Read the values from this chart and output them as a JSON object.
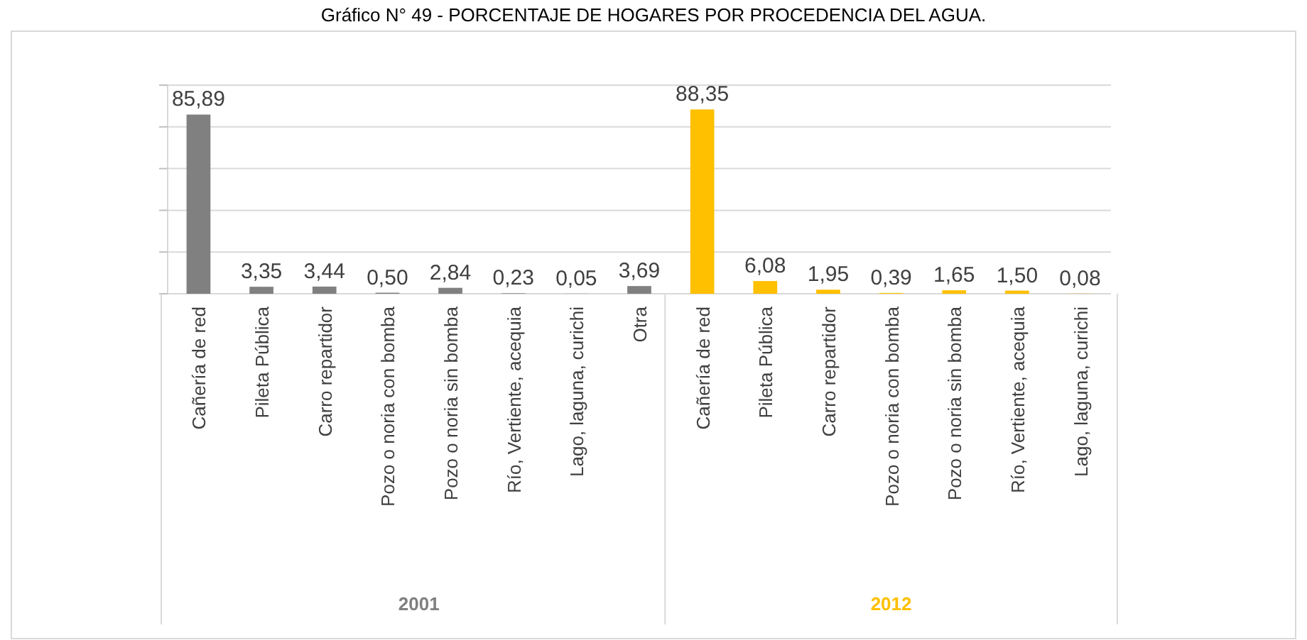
{
  "chart_data": {
    "type": "bar",
    "title": "Gráfico N° 49 - PORCENTAJE DE HOGARES POR PROCEDENCIA DEL AGUA.",
    "categories": [
      "Cañería de red",
      "Pileta Pública",
      "Carro repartidor",
      "Pozo o noria con bomba",
      "Pozo o noria sin bomba",
      "Río, Vertiente, acequia",
      "Lago, laguna, curichi",
      "Otra",
      "Cañería de red",
      "Pileta Pública",
      "Carro repartidor",
      "Pozo o noria con bomba",
      "Pozo o noria sin bomba",
      "Río, Vertiente, acequia",
      "Lago, laguna, curichi"
    ],
    "series": [
      {
        "name": "2001",
        "color": "#808080",
        "values": [
          85.89,
          3.35,
          3.44,
          0.5,
          2.84,
          0.23,
          0.05,
          3.69,
          null,
          null,
          null,
          null,
          null,
          null,
          null
        ],
        "value_labels": [
          "85,89",
          "3,35",
          "3,44",
          "0,50",
          "2,84",
          "0,23",
          "0,05",
          "3,69",
          null,
          null,
          null,
          null,
          null,
          null,
          null
        ]
      },
      {
        "name": "2012",
        "color": "#ffc000",
        "values": [
          null,
          null,
          null,
          null,
          null,
          null,
          null,
          null,
          88.35,
          6.08,
          1.95,
          0.39,
          1.65,
          1.5,
          0.08
        ],
        "value_labels": [
          null,
          null,
          null,
          null,
          null,
          null,
          null,
          null,
          "88,35",
          "6,08",
          "1,95",
          "0,39",
          "1,65",
          "1,50",
          "0,08"
        ]
      }
    ],
    "ylim": [
      0,
      100
    ],
    "yticks": [
      {
        "value": 0,
        "label": null
      },
      {
        "value": 20,
        "label": null
      },
      {
        "value": 40,
        "label": null
      },
      {
        "value": 60,
        "label": null
      },
      {
        "value": 80,
        "label": null
      },
      {
        "value": 100,
        "label": null
      }
    ],
    "grid": "y"
  }
}
